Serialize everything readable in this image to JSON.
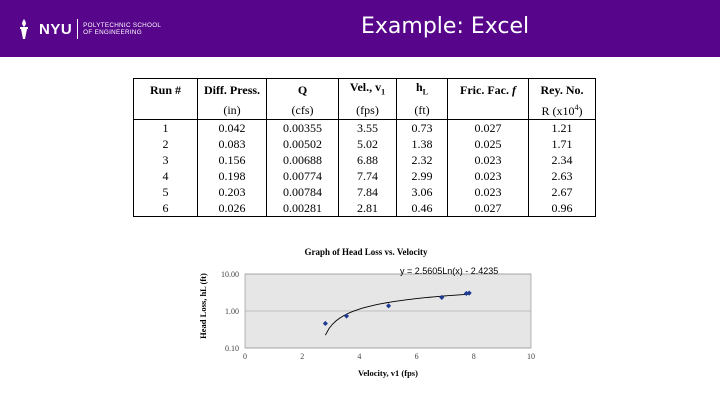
{
  "header": {
    "logo_text": "NYU",
    "school_line1": "POLYTECHNIC SCHOOL",
    "school_line2": "OF ENGINEERING",
    "title": "Example: Excel"
  },
  "table": {
    "headers": [
      "Run #",
      "Diff. Press.",
      "Q",
      "Vel., v1",
      "hL",
      "Fric. Fac. f",
      "Rey. No."
    ],
    "units": [
      "",
      "(in)",
      "(cfs)",
      "(fps)",
      "(ft)",
      "",
      "R (x10^4)"
    ],
    "rows": [
      [
        "1",
        "0.042",
        "0.00355",
        "3.55",
        "0.73",
        "0.027",
        "1.21"
      ],
      [
        "2",
        "0.083",
        "0.00502",
        "5.02",
        "1.38",
        "0.025",
        "1.71"
      ],
      [
        "3",
        "0.156",
        "0.00688",
        "6.88",
        "2.32",
        "0.023",
        "2.34"
      ],
      [
        "4",
        "0.198",
        "0.00774",
        "7.74",
        "2.99",
        "0.023",
        "2.63"
      ],
      [
        "5",
        "0.203",
        "0.00784",
        "7.84",
        "3.06",
        "0.023",
        "2.67"
      ],
      [
        "6",
        "0.026",
        "0.00281",
        "2.81",
        "0.46",
        "0.027",
        "0.96"
      ]
    ]
  },
  "chart_data": {
    "type": "scatter",
    "title": "Graph of Head Loss vs. Velocity",
    "xlabel": "Velocity, v1 (fps)",
    "ylabel": "Head Loss, hL (ft)",
    "xlim": [
      0,
      10
    ],
    "ylim": [
      0.1,
      10
    ],
    "y_scale": "log",
    "x_ticks": [
      "0",
      "2",
      "4",
      "6",
      "8",
      "10"
    ],
    "y_ticks": [
      "0.10",
      "1.00",
      "10.00"
    ],
    "trendline_label": "y = 2.5605Ln(x) - 2.4235",
    "trendline": {
      "a": 2.5605,
      "b": -2.4235
    },
    "x": [
      2.81,
      3.55,
      5.02,
      6.88,
      7.74,
      7.84
    ],
    "y": [
      0.46,
      0.73,
      1.38,
      2.32,
      2.99,
      3.06
    ],
    "point_color": "#1f3a93",
    "plot_bg": "#e6e6e6",
    "grid": true
  },
  "colors": {
    "brand": "#57068c"
  }
}
